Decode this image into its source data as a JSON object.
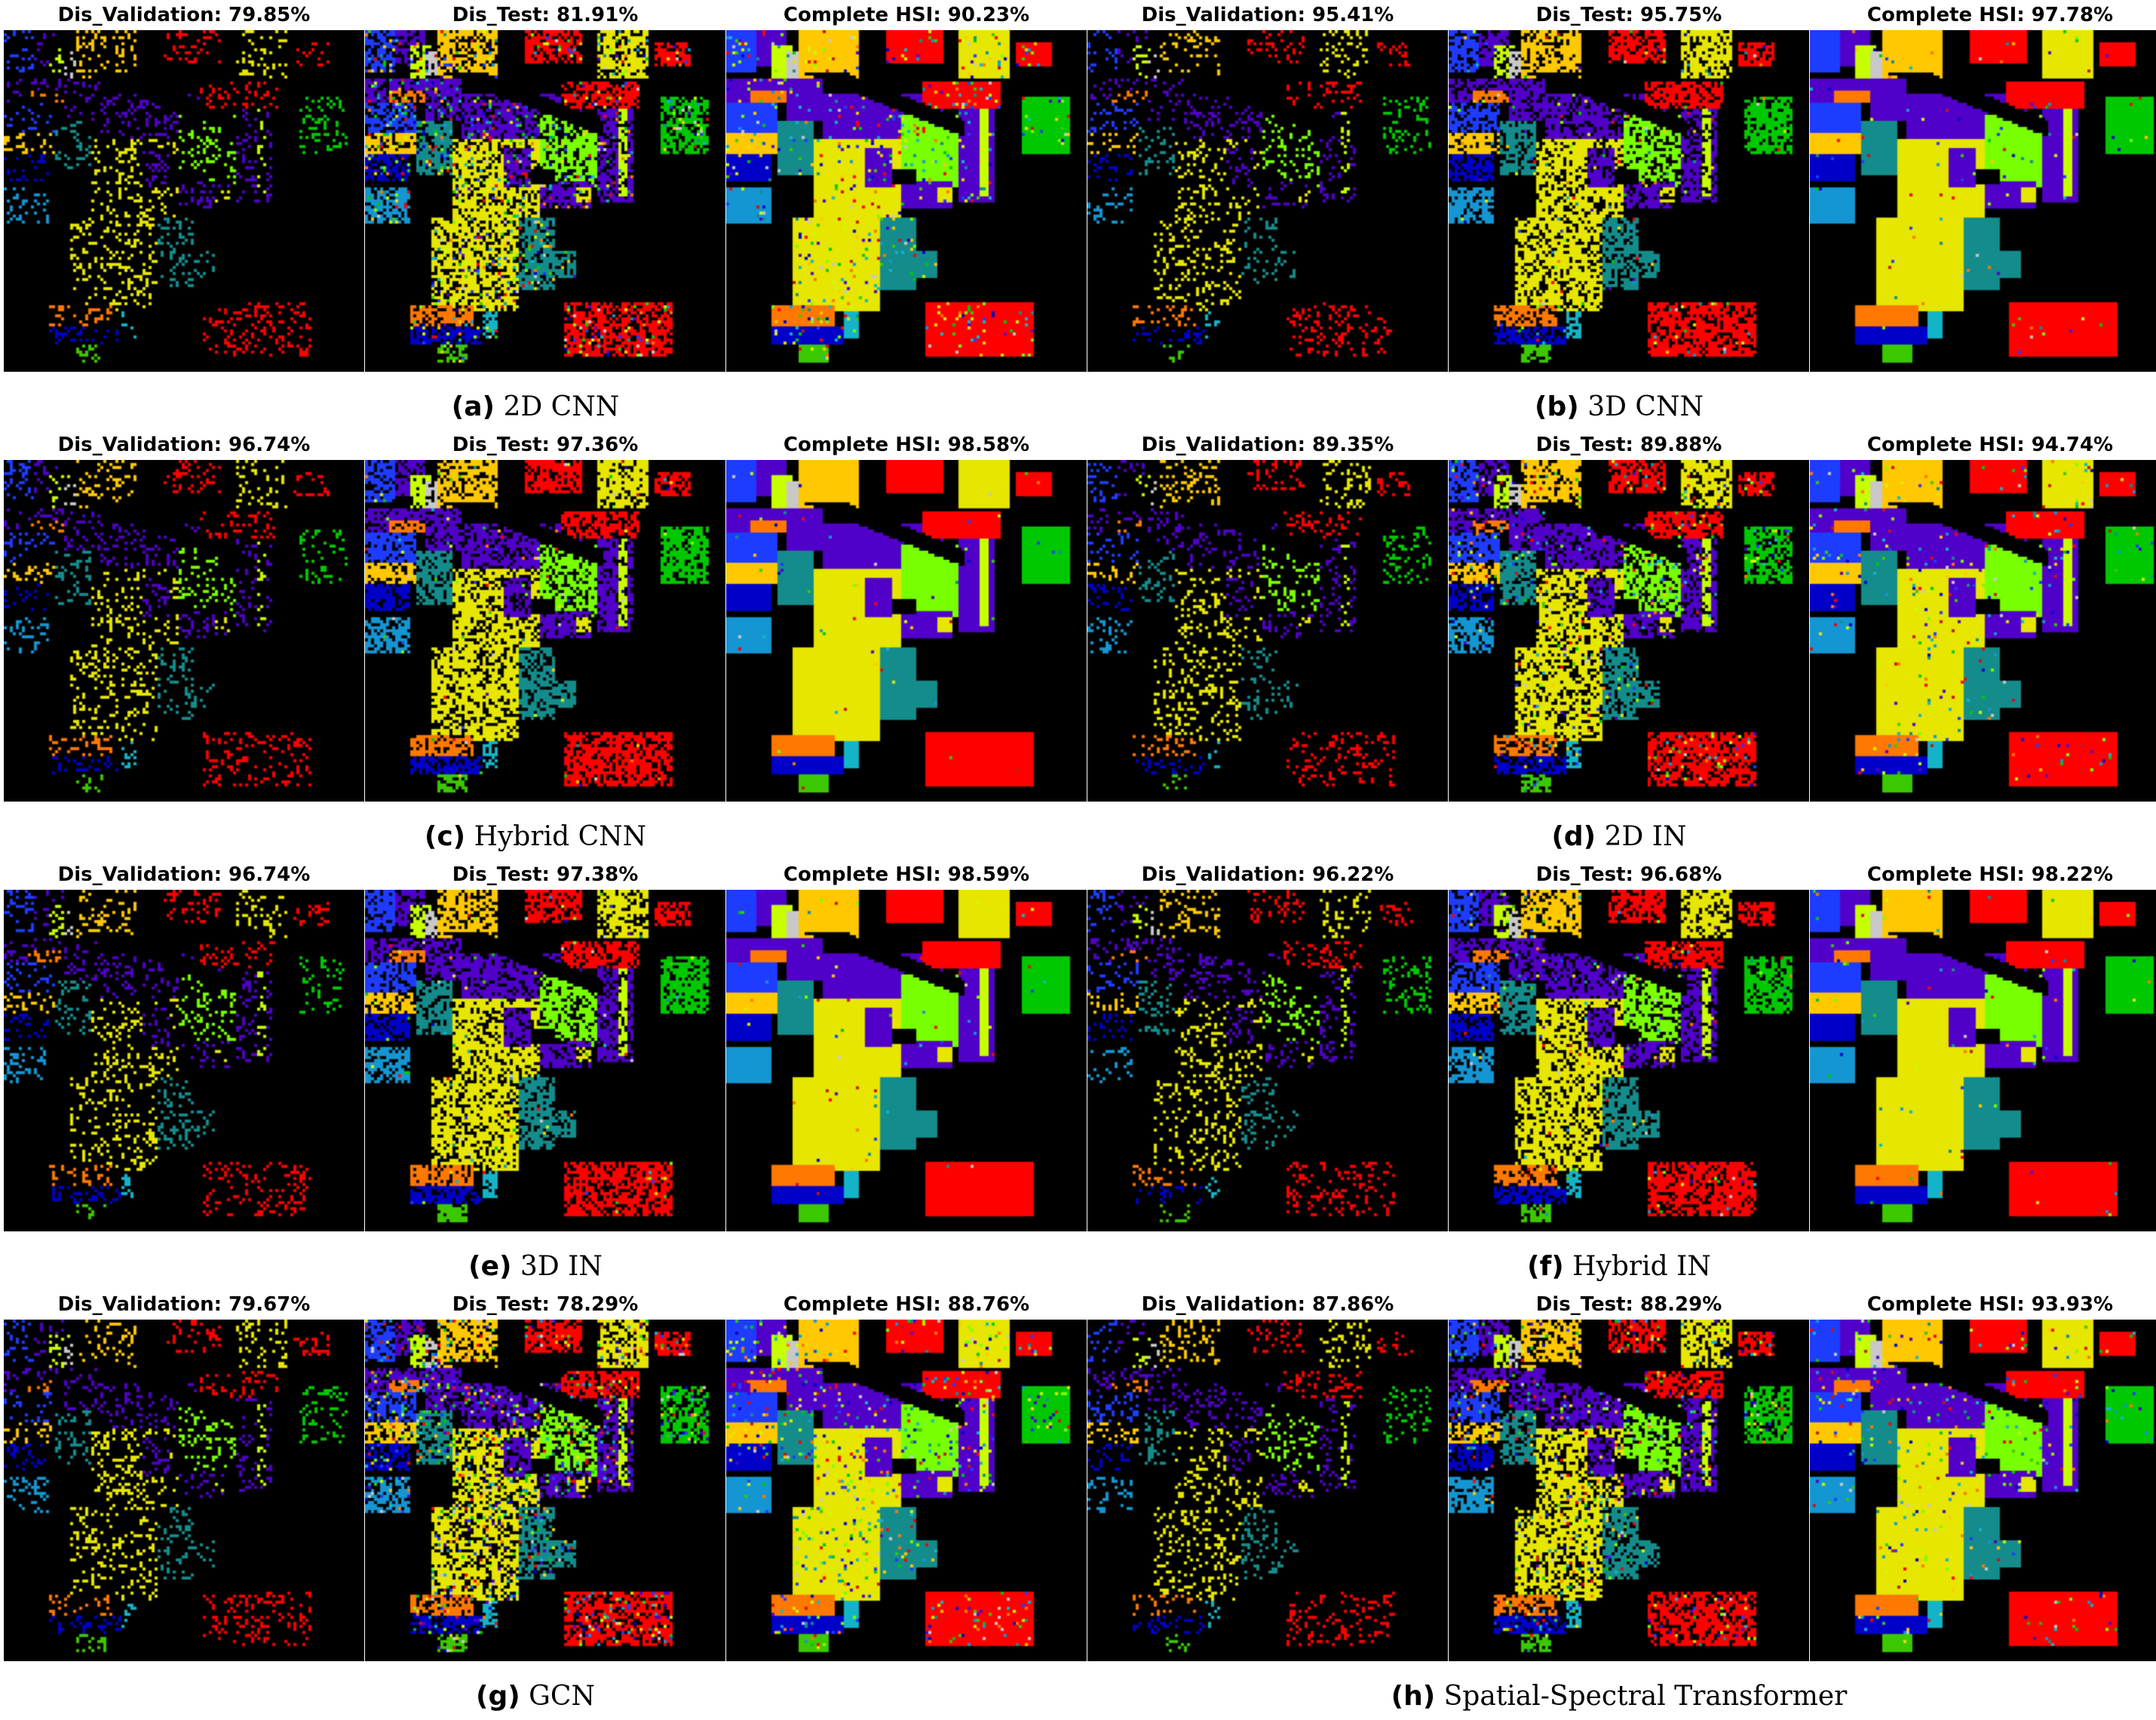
{
  "groups": [
    {
      "label": "(a)",
      "name": "2D CNN",
      "panels": [
        "Dis_Validation: 79.85%",
        "Dis_Test: 81.91%",
        "Complete HSI: 90.23%"
      ]
    },
    {
      "label": "(b)",
      "name": "3D CNN",
      "panels": [
        "Dis_Validation: 95.41%",
        "Dis_Test: 95.75%",
        "Complete HSI: 97.78%"
      ]
    },
    {
      "label": "(c)",
      "name": "Hybrid CNN",
      "panels": [
        "Dis_Validation: 96.74%",
        "Dis_Test: 97.36%",
        "Complete HSI: 98.58%"
      ]
    },
    {
      "label": "(d)",
      "name": "2D IN",
      "panels": [
        "Dis_Validation: 89.35%",
        "Dis_Test: 89.88%",
        "Complete HSI: 94.74%"
      ]
    },
    {
      "label": "(e)",
      "name": "3D IN",
      "panels": [
        "Dis_Validation: 96.74%",
        "Dis_Test: 97.38%",
        "Complete HSI: 98.59%"
      ]
    },
    {
      "label": "(f)",
      "name": "Hybrid IN",
      "panels": [
        "Dis_Validation: 96.22%",
        "Dis_Test: 96.68%",
        "Complete HSI: 98.22%"
      ]
    },
    {
      "label": "(g)",
      "name": "GCN",
      "panels": [
        "Dis_Validation: 79.67%",
        "Dis_Test: 78.29%",
        "Complete HSI: 88.76%"
      ]
    },
    {
      "label": "(h)",
      "name": "Spatial-Spectral Transformer",
      "panels": [
        "Dis_Validation: 87.86%",
        "Dis_Test: 88.29%",
        "Complete HSI: 93.93%"
      ]
    }
  ],
  "class_colors": [
    "#000000",
    "#0000c8",
    "#1e3cff",
    "#1496d2",
    "#14b4c8",
    "#148c8c",
    "#00c800",
    "#3cc800",
    "#78ff00",
    "#c8ff00",
    "#e6e600",
    "#ffc800",
    "#ff7800",
    "#ff0000",
    "#c81414",
    "#5000c8",
    "#c8c8c8"
  ]
}
